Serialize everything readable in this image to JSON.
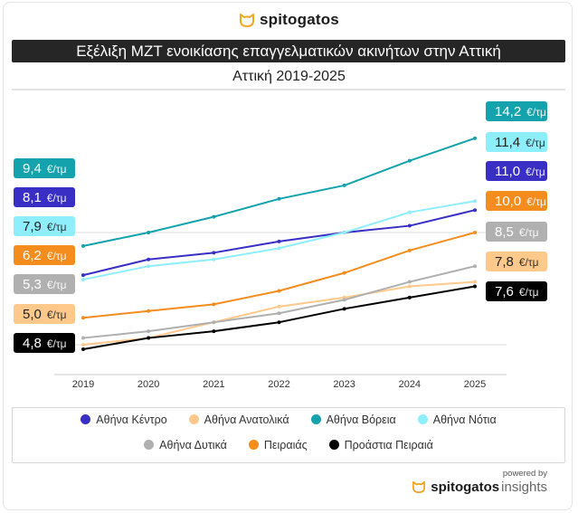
{
  "brand": {
    "name": "spitogatos"
  },
  "header": {
    "title": "Εξέλιξη ΜΖΤ ενοικίασης επαγγελματικών ακινήτων στην Αττική",
    "subtitle": "Αττική 2019-2025"
  },
  "footer": {
    "powered_by": "powered by",
    "brand_bold": "spitogatos",
    "brand_light": "insights"
  },
  "chart_data": {
    "type": "line",
    "title": "Εξέλιξη ΜΖΤ ενοικίασης επαγγελματικών ακινήτων στην Αττική",
    "subtitle": "Αττική 2019-2025",
    "xlabel": "",
    "ylabel": "€/τμ",
    "unit": "€/τμ",
    "x": [
      "2019",
      "2020",
      "2021",
      "2022",
      "2023",
      "2024",
      "2025"
    ],
    "ylim": [
      4.5,
      14.5
    ],
    "grid": true,
    "gridlines": [
      5,
      10
    ],
    "legend_position": "bottom",
    "series": [
      {
        "name": "Αθήνα Κέντρο",
        "color": "#3a2fc4",
        "text_color": "#ffffff",
        "values": [
          8.1,
          8.8,
          9.1,
          9.6,
          10.0,
          10.3,
          11.0
        ],
        "start_label": "8,1",
        "end_label": "11,0"
      },
      {
        "name": "Αθήνα Ανατολικά",
        "color": "#ffc98c",
        "text_color": "#222222",
        "values": [
          5.0,
          5.3,
          6.0,
          6.7,
          7.1,
          7.6,
          7.8
        ],
        "start_label": "5,0",
        "end_label": "7,8"
      },
      {
        "name": "Αθήνα Βόρεια",
        "color": "#14a3ad",
        "text_color": "#ffffff",
        "values": [
          9.4,
          10.0,
          10.7,
          11.5,
          12.1,
          13.2,
          14.2
        ],
        "start_label": "9,4",
        "end_label": "14,2"
      },
      {
        "name": "Αθήνα Νότια",
        "color": "#8eeefc",
        "text_color": "#222222",
        "values": [
          7.9,
          8.5,
          8.8,
          9.3,
          10.0,
          10.9,
          11.4
        ],
        "start_label": "7,9",
        "end_label": "11,4"
      },
      {
        "name": "Αθήνα Δυτικά",
        "color": "#b0b0b0",
        "text_color": "#ffffff",
        "values": [
          5.3,
          5.6,
          6.0,
          6.4,
          7.0,
          7.8,
          8.5
        ],
        "start_label": "5,3",
        "end_label": "8,5"
      },
      {
        "name": "Πειραιάς",
        "color": "#f58d1e",
        "text_color": "#ffffff",
        "values": [
          6.2,
          6.5,
          6.8,
          7.4,
          8.2,
          9.2,
          10.0
        ],
        "start_label": "6,2",
        "end_label": "10,0"
      },
      {
        "name": "Προάστια Πειραιά",
        "color": "#000000",
        "text_color": "#ffffff",
        "values": [
          4.8,
          5.3,
          5.6,
          6.0,
          6.6,
          7.1,
          7.6
        ],
        "start_label": "4,8",
        "end_label": "7,6"
      }
    ],
    "left_label_order": [
      "Αθήνα Βόρεια",
      "Αθήνα Κέντρο",
      "Αθήνα Νότια",
      "Πειραιάς",
      "Αθήνα Δυτικά",
      "Αθήνα Ανατολικά",
      "Προάστια Πειραιά"
    ],
    "right_label_order": [
      "Αθήνα Βόρεια",
      "Αθήνα Νότια",
      "Αθήνα Κέντρο",
      "Πειραιάς",
      "Αθήνα Δυτικά",
      "Αθήνα Ανατολικά",
      "Προάστια Πειραιά"
    ],
    "legend_rows": [
      [
        "Αθήνα Κέντρο",
        "Αθήνα Ανατολικά",
        "Αθήνα Βόρεια",
        "Αθήνα Νότια"
      ],
      [
        "Αθήνα Δυτικά",
        "Πειραιάς",
        "Προάστια Πειραιά"
      ]
    ]
  }
}
